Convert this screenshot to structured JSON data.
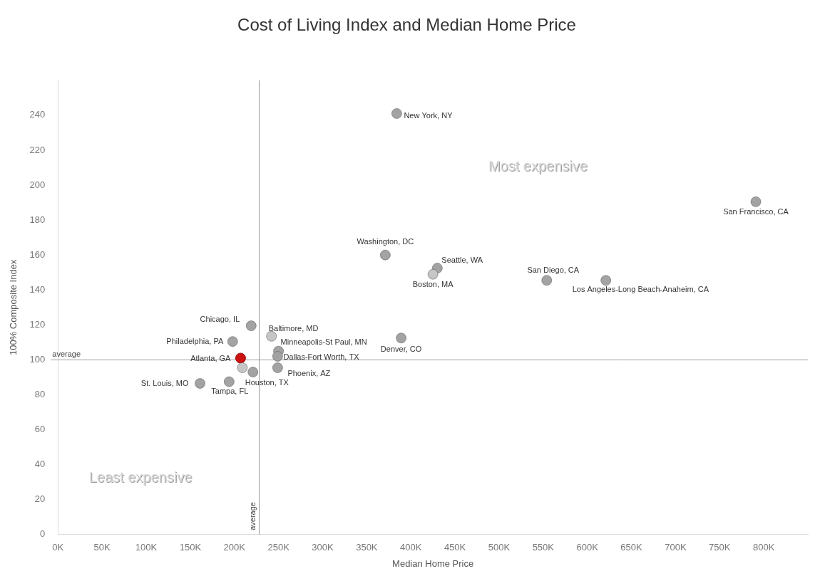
{
  "chart_data": {
    "type": "scatter",
    "title": "Cost of Living Index and Median Home Price",
    "x_label": "Median Home Price",
    "y_label": "100% Composite Index",
    "point_labels": [
      "New York, NY",
      "San Francisco, CA",
      "Washington, DC",
      "Seattle, WA",
      "Boston, MA",
      "San Diego, CA",
      "Los Angeles-Long Beach-Anaheim, CA",
      "Denver, CO",
      "Chicago, IL",
      "Baltimore, MD",
      "Philadelphia, PA",
      "Minneapolis-St Paul, MN",
      "Dallas-Fort Worth, TX",
      "Atlanta, GA",
      "Phoenix, AZ",
      null,
      "Houston, TX",
      "Tampa, FL",
      "St. Louis, MO"
    ],
    "x": [
      384000,
      791000,
      371000,
      430000,
      425000,
      554000,
      621000,
      389000,
      219000,
      242000,
      198000,
      250000,
      249000,
      207000,
      249000,
      209000,
      221000,
      194000,
      161000
    ],
    "values": [
      241,
      190.5,
      160,
      152.5,
      149,
      145.5,
      145.5,
      112.5,
      119.5,
      113.5,
      110.5,
      105,
      102,
      101,
      95.5,
      95.5,
      93,
      87.5,
      86.5
    ],
    "colors": [
      "#a3a3a3",
      "#a3a3a3",
      "#a3a3a3",
      "#a3a3a3",
      "#c6c6c6",
      "#a3a3a3",
      "#a3a3a3",
      "#a3a3a3",
      "#a3a3a3",
      "#c6c6c6",
      "#a3a3a3",
      "#a3a3a3",
      "#a3a3a3",
      "#cc1111",
      "#a3a3a3",
      "#c6c6c6",
      "#a3a3a3",
      "#a3a3a3",
      "#a3a3a3"
    ],
    "marker": "circle",
    "reference_lines": [
      {
        "axis": "x",
        "value": 228000,
        "label": "average"
      },
      {
        "axis": "y",
        "value": 100,
        "label": "average"
      }
    ],
    "annotations": [
      {
        "text": "Most expensive"
      },
      {
        "text": "Least expensive"
      }
    ],
    "xlim": [
      0,
      850000
    ],
    "xticks": [
      {
        "value": 0,
        "label": "0K"
      },
      {
        "value": 50000,
        "label": "50K"
      },
      {
        "value": 100000,
        "label": "100K"
      },
      {
        "value": 150000,
        "label": "150K"
      },
      {
        "value": 200000,
        "label": "200K"
      },
      {
        "value": 250000,
        "label": "250K"
      },
      {
        "value": 300000,
        "label": "300K"
      },
      {
        "value": 350000,
        "label": "350K"
      },
      {
        "value": 400000,
        "label": "400K"
      },
      {
        "value": 450000,
        "label": "450K"
      },
      {
        "value": 500000,
        "label": "500K"
      },
      {
        "value": 550000,
        "label": "550K"
      },
      {
        "value": 600000,
        "label": "600K"
      },
      {
        "value": 650000,
        "label": "650K"
      },
      {
        "value": 700000,
        "label": "700K"
      },
      {
        "value": 750000,
        "label": "750K"
      },
      {
        "value": 800000,
        "label": "800K"
      }
    ],
    "ylim": [
      0,
      260
    ],
    "yticks": [
      0,
      20,
      40,
      60,
      80,
      100,
      120,
      140,
      160,
      180,
      200,
      220,
      240
    ],
    "grid": false
  }
}
